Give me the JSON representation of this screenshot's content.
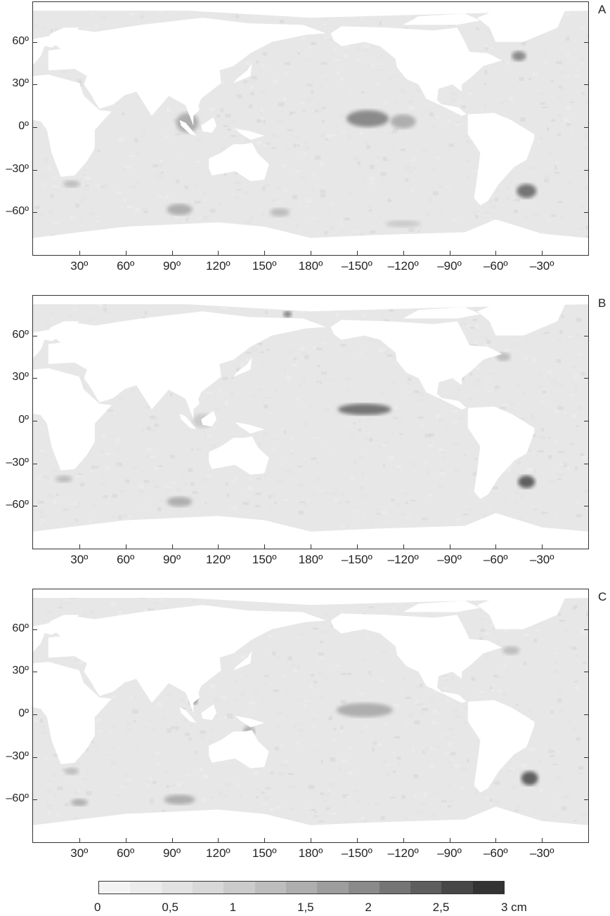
{
  "panels": [
    {
      "label": "A",
      "hotspots": [
        {
          "lon": -143,
          "lat": 6,
          "intensity": 2.0,
          "rx": 30,
          "ry": 12
        },
        {
          "lon": -120,
          "lat": 4,
          "intensity": 1.5,
          "rx": 18,
          "ry": 10
        },
        {
          "lon": -40,
          "lat": -45,
          "intensity": 2.2,
          "rx": 14,
          "ry": 10
        },
        {
          "lon": 100,
          "lat": 3,
          "intensity": 1.6,
          "rx": 16,
          "ry": 14
        },
        {
          "lon": 95,
          "lat": -58,
          "intensity": 1.5,
          "rx": 18,
          "ry": 8
        },
        {
          "lon": 160,
          "lat": -60,
          "intensity": 1.3,
          "rx": 14,
          "ry": 6
        },
        {
          "lon": -45,
          "lat": 50,
          "intensity": 2.0,
          "rx": 10,
          "ry": 7
        },
        {
          "lon": 25,
          "lat": -40,
          "intensity": 1.3,
          "rx": 12,
          "ry": 5
        },
        {
          "lon": -120,
          "lat": -68,
          "intensity": 1.0,
          "rx": 25,
          "ry": 5
        }
      ]
    },
    {
      "label": "B",
      "hotspots": [
        {
          "lon": -145,
          "lat": 8,
          "intensity": 2.3,
          "rx": 38,
          "ry": 8
        },
        {
          "lon": -40,
          "lat": -43,
          "intensity": 2.6,
          "rx": 12,
          "ry": 9
        },
        {
          "lon": 95,
          "lat": -57,
          "intensity": 1.4,
          "rx": 18,
          "ry": 7
        },
        {
          "lon": 165,
          "lat": 75,
          "intensity": 2.2,
          "rx": 6,
          "ry": 4
        },
        {
          "lon": 20,
          "lat": -41,
          "intensity": 1.3,
          "rx": 12,
          "ry": 5
        },
        {
          "lon": -55,
          "lat": 45,
          "intensity": 1.2,
          "rx": 10,
          "ry": 6
        },
        {
          "lon": 110,
          "lat": 0,
          "intensity": 1.1,
          "rx": 14,
          "ry": 10
        }
      ]
    },
    {
      "label": "C",
      "hotspots": [
        {
          "lon": -145,
          "lat": 3,
          "intensity": 1.4,
          "rx": 40,
          "ry": 10
        },
        {
          "lon": -38,
          "lat": -45,
          "intensity": 2.4,
          "rx": 12,
          "ry": 10
        },
        {
          "lon": 104,
          "lat": 10,
          "intensity": 2.0,
          "rx": 6,
          "ry": 6
        },
        {
          "lon": 140,
          "lat": -12,
          "intensity": 1.6,
          "rx": 8,
          "ry": 8
        },
        {
          "lon": 95,
          "lat": -60,
          "intensity": 1.5,
          "rx": 22,
          "ry": 7
        },
        {
          "lon": 30,
          "lat": -62,
          "intensity": 1.4,
          "rx": 12,
          "ry": 5
        },
        {
          "lon": -50,
          "lat": 45,
          "intensity": 1.2,
          "rx": 12,
          "ry": 6
        },
        {
          "lon": 25,
          "lat": -40,
          "intensity": 1.2,
          "rx": 10,
          "ry": 5
        }
      ]
    }
  ],
  "axes": {
    "x_ticks": [
      {
        "lon": 30,
        "label": "30º"
      },
      {
        "lon": 60,
        "label": "60º"
      },
      {
        "lon": 90,
        "label": "90º"
      },
      {
        "lon": 120,
        "label": "120º"
      },
      {
        "lon": 150,
        "label": "150º"
      },
      {
        "lon": 180,
        "label": "180º"
      },
      {
        "lon": -150,
        "label": "–150º"
      },
      {
        "lon": -120,
        "label": "–120º"
      },
      {
        "lon": -90,
        "label": "–90º"
      },
      {
        "lon": -60,
        "label": "–60º"
      },
      {
        "lon": -30,
        "label": "–30º"
      }
    ],
    "y_ticks": [
      {
        "lat": 60,
        "label": "60º"
      },
      {
        "lat": 30,
        "label": "30º"
      },
      {
        "lat": 0,
        "label": "0º"
      },
      {
        "lat": -30,
        "label": "–30º"
      },
      {
        "lat": -60,
        "label": "–60º"
      }
    ],
    "lon_range": [
      0,
      360
    ],
    "lat_range": [
      -90,
      88
    ]
  },
  "colorbar": {
    "labels": [
      {
        "value": 0,
        "label": "0"
      },
      {
        "value": 0.5,
        "label": "0,5"
      },
      {
        "value": 1,
        "label": "1"
      },
      {
        "value": 1.5,
        "label": "1,5"
      },
      {
        "value": 2,
        "label": "2"
      },
      {
        "value": 2.5,
        "label": "2,5"
      },
      {
        "value": 3,
        "label": "3 cm"
      }
    ],
    "range": [
      0,
      3
    ],
    "colors": [
      "#f4f4f4",
      "#ececec",
      "#e2e2e2",
      "#d8d8d8",
      "#cbcbcb",
      "#bdbdbd",
      "#aeaeae",
      "#9d9d9d",
      "#8a8a8a",
      "#757575",
      "#5e5e5e",
      "#474747",
      "#333333"
    ]
  },
  "colors": {
    "land": "#ffffff",
    "ocean_base": "#e7e7e7",
    "frame": "#333333"
  }
}
